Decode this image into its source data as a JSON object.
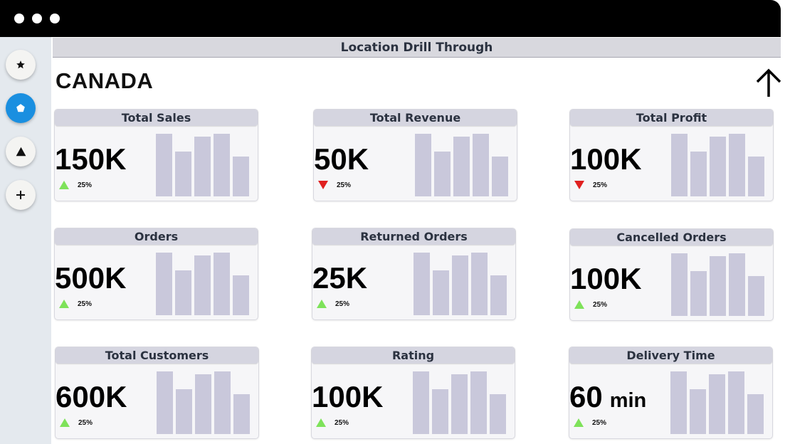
{
  "window": {
    "controls": [
      "close",
      "minimize",
      "maximize"
    ]
  },
  "sidebar": {
    "buttons": [
      {
        "icon": "star-icon",
        "active": false
      },
      {
        "icon": "pentagon-icon",
        "active": true
      },
      {
        "icon": "triangle-icon",
        "active": false
      },
      {
        "icon": "plus-icon",
        "active": false
      }
    ],
    "accent_color": "#1a8fe0"
  },
  "header": {
    "title": "Location Drill Through"
  },
  "page": {
    "title": "CANADA",
    "back_icon": "arrow-up-icon"
  },
  "colors": {
    "up": "#7ee25a",
    "down": "#e02020",
    "bar": "#c9c8db",
    "title_bg": "#d5d5e0"
  },
  "cards": [
    {
      "title": "Total Sales",
      "value": "150K",
      "unit": "",
      "change": "25%",
      "trend": "up",
      "bars": [
        0.98,
        0.7,
        0.93,
        0.98,
        0.62
      ]
    },
    {
      "title": "Total Revenue",
      "value": "50K",
      "unit": "",
      "change": "25%",
      "trend": "down",
      "bars": [
        0.98,
        0.7,
        0.93,
        0.98,
        0.62
      ]
    },
    {
      "title": "Total Profit",
      "value": "100K",
      "unit": "",
      "change": "25%",
      "trend": "down",
      "bars": [
        0.98,
        0.7,
        0.93,
        0.98,
        0.62
      ]
    },
    {
      "title": "Orders",
      "value": "500K",
      "unit": "",
      "change": "25%",
      "trend": "up",
      "bars": [
        0.98,
        0.7,
        0.93,
        0.98,
        0.62
      ]
    },
    {
      "title": "Returned Orders",
      "value": "25K",
      "unit": "",
      "change": "25%",
      "trend": "up",
      "bars": [
        0.98,
        0.7,
        0.93,
        0.98,
        0.62
      ]
    },
    {
      "title": "Cancelled Orders",
      "value": "100K",
      "unit": "",
      "change": "25%",
      "trend": "up",
      "bars": [
        0.98,
        0.7,
        0.93,
        0.98,
        0.62
      ]
    },
    {
      "title": "Total Customers",
      "value": "600K",
      "unit": "",
      "change": "25%",
      "trend": "up",
      "bars": [
        0.98,
        0.7,
        0.93,
        0.98,
        0.62
      ]
    },
    {
      "title": "Rating",
      "value": "100K",
      "unit": "",
      "change": "25%",
      "trend": "up",
      "bars": [
        0.98,
        0.7,
        0.93,
        0.98,
        0.62
      ]
    },
    {
      "title": "Delivery Time",
      "value": "60",
      "unit": "min",
      "change": "25%",
      "trend": "up",
      "bars": [
        0.98,
        0.7,
        0.93,
        0.98,
        0.62
      ]
    }
  ]
}
